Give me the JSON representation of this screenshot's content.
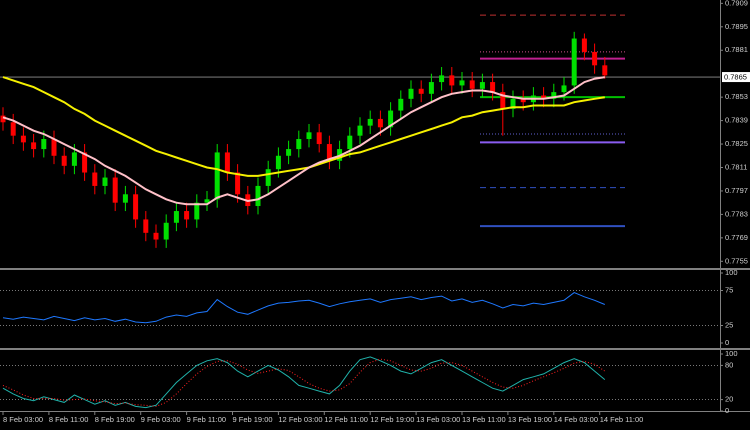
{
  "chart_data": [
    {
      "type": "candlestick",
      "open": [
        0.7842,
        0.7838,
        0.783,
        0.7826,
        0.7822,
        0.7828,
        0.7818,
        0.7812,
        0.782,
        0.7808,
        0.78,
        0.7805,
        0.779,
        0.7795,
        0.778,
        0.7772,
        0.7768,
        0.7778,
        0.7785,
        0.778,
        0.779,
        0.7792,
        0.782,
        0.7808,
        0.7795,
        0.7788,
        0.78,
        0.781,
        0.7818,
        0.7822,
        0.7828,
        0.7832,
        0.7825,
        0.7815,
        0.7822,
        0.783,
        0.7836,
        0.784,
        0.7835,
        0.7845,
        0.7852,
        0.7858,
        0.7855,
        0.7862,
        0.7866,
        0.786,
        0.7863,
        0.7858,
        0.7862,
        0.7856,
        0.7846,
        0.7852,
        0.785,
        0.7854,
        0.7852,
        0.7856,
        0.786,
        0.7888,
        0.788,
        0.7872
      ],
      "high": [
        0.7847,
        0.7843,
        0.7835,
        0.7831,
        0.7833,
        0.7833,
        0.7823,
        0.7825,
        0.7825,
        0.7813,
        0.781,
        0.781,
        0.78,
        0.78,
        0.7785,
        0.7777,
        0.7783,
        0.779,
        0.779,
        0.7795,
        0.7797,
        0.7825,
        0.7825,
        0.7813,
        0.78,
        0.7805,
        0.7815,
        0.7823,
        0.7827,
        0.7833,
        0.7837,
        0.7837,
        0.783,
        0.7827,
        0.7835,
        0.7841,
        0.7845,
        0.7845,
        0.785,
        0.7857,
        0.7863,
        0.7863,
        0.7867,
        0.7871,
        0.7871,
        0.7868,
        0.7868,
        0.7867,
        0.7867,
        0.7861,
        0.7857,
        0.7857,
        0.7859,
        0.7859,
        0.7861,
        0.7865,
        0.7892,
        0.7891,
        0.7885,
        0.7877
      ],
      "low": [
        0.7833,
        0.7825,
        0.7821,
        0.7817,
        0.7817,
        0.7813,
        0.7807,
        0.7807,
        0.7803,
        0.7795,
        0.7795,
        0.7785,
        0.7785,
        0.7775,
        0.7767,
        0.7763,
        0.7763,
        0.7773,
        0.7775,
        0.7775,
        0.7785,
        0.7787,
        0.7803,
        0.779,
        0.7783,
        0.7783,
        0.7795,
        0.7805,
        0.7813,
        0.7817,
        0.7823,
        0.782,
        0.781,
        0.781,
        0.7817,
        0.7825,
        0.7831,
        0.783,
        0.783,
        0.784,
        0.7847,
        0.785,
        0.785,
        0.7857,
        0.7855,
        0.7855,
        0.7853,
        0.7853,
        0.7851,
        0.783,
        0.7841,
        0.7845,
        0.7845,
        0.7847,
        0.7847,
        0.7851,
        0.7855,
        0.7875,
        0.7867,
        0.7864
      ],
      "close": [
        0.7838,
        0.783,
        0.7826,
        0.7822,
        0.7828,
        0.7818,
        0.7812,
        0.782,
        0.7808,
        0.78,
        0.7805,
        0.779,
        0.7795,
        0.778,
        0.7772,
        0.7768,
        0.7778,
        0.7785,
        0.778,
        0.779,
        0.7792,
        0.782,
        0.7808,
        0.7795,
        0.7788,
        0.78,
        0.781,
        0.7818,
        0.7822,
        0.7828,
        0.7832,
        0.7825,
        0.7815,
        0.7822,
        0.783,
        0.7836,
        0.784,
        0.7835,
        0.7845,
        0.7852,
        0.7858,
        0.7855,
        0.7862,
        0.7866,
        0.786,
        0.7863,
        0.7858,
        0.7862,
        0.7856,
        0.7846,
        0.7852,
        0.785,
        0.7854,
        0.7852,
        0.7856,
        0.786,
        0.7888,
        0.788,
        0.7872,
        0.7866
      ],
      "up_color": "#00e000",
      "down_color": "#ff0000",
      "series": [
        {
          "color": "#f5f000",
          "values": [
            0.7865,
            0.7863,
            0.7861,
            0.7859,
            0.7856,
            0.7853,
            0.785,
            0.7846,
            0.7843,
            0.7839,
            0.7836,
            0.7833,
            0.783,
            0.7827,
            0.7824,
            0.7821,
            0.7819,
            0.7817,
            0.7815,
            0.7813,
            0.7811,
            0.781,
            0.7808,
            0.7807,
            0.7806,
            0.7806,
            0.7807,
            0.7808,
            0.7809,
            0.781,
            0.7811,
            0.7813,
            0.7815,
            0.7817,
            0.7819,
            0.782,
            0.7822,
            0.7824,
            0.7826,
            0.7828,
            0.783,
            0.7832,
            0.7834,
            0.7836,
            0.7838,
            0.7841,
            0.7842,
            0.7844,
            0.7845,
            0.7846,
            0.7847,
            0.7847,
            0.7848,
            0.7848,
            0.7848,
            0.7848,
            0.785,
            0.7851,
            0.7852,
            0.7853
          ]
        },
        {
          "color": "#ffc0c8",
          "values": [
            0.7841,
            0.7839,
            0.7836,
            0.7833,
            0.7831,
            0.7828,
            0.7825,
            0.7822,
            0.7819,
            0.7816,
            0.7812,
            0.7809,
            0.7806,
            0.7802,
            0.7798,
            0.7795,
            0.7792,
            0.779,
            0.7789,
            0.7789,
            0.7789,
            0.7793,
            0.7795,
            0.7793,
            0.7791,
            0.7792,
            0.7795,
            0.7799,
            0.7803,
            0.7807,
            0.7811,
            0.7814,
            0.7816,
            0.7818,
            0.7821,
            0.7824,
            0.7828,
            0.7832,
            0.7836,
            0.784,
            0.7844,
            0.7847,
            0.785,
            0.7853,
            0.7855,
            0.7856,
            0.7857,
            0.7857,
            0.7856,
            0.7854,
            0.7853,
            0.7852,
            0.7852,
            0.7852,
            0.7853,
            0.7854,
            0.7858,
            0.7862,
            0.7864,
            0.7865
          ]
        }
      ],
      "levels": [
        {
          "value": 0.7902,
          "color": "#c03030",
          "style": "dashed"
        },
        {
          "value": 0.788,
          "color": "#d0508a",
          "style": "dotted"
        },
        {
          "value": 0.7876,
          "color": "#c0208f",
          "style": "solid"
        },
        {
          "value": 0.7853,
          "color": "#00c000",
          "style": "solid"
        },
        {
          "value": 0.7831,
          "color": "#6060d0",
          "style": "dotted"
        },
        {
          "value": 0.7826,
          "color": "#8a5cf0",
          "style": "solid"
        },
        {
          "value": 0.7799,
          "color": "#3050c0",
          "style": "dashed"
        },
        {
          "value": 0.7776,
          "color": "#3050c0",
          "style": "solid"
        }
      ],
      "last_price": 0.7865,
      "ylim": [
        0.7751,
        0.7911
      ],
      "yticks": [
        0.7909,
        0.7895,
        0.7881,
        0.7853,
        0.7839,
        0.7825,
        0.7811,
        0.7797,
        0.7783,
        0.7769,
        0.7755
      ]
    },
    {
      "type": "line",
      "series": [
        {
          "color": "#1e78ff",
          "style": "solid",
          "values": [
            36,
            34,
            37,
            35,
            33,
            38,
            35,
            32,
            36,
            33,
            35,
            31,
            34,
            30,
            29,
            31,
            37,
            40,
            38,
            43,
            45,
            62,
            52,
            44,
            41,
            47,
            53,
            57,
            58,
            60,
            61,
            57,
            52,
            56,
            59,
            61,
            63,
            58,
            62,
            64,
            66,
            62,
            65,
            67,
            60,
            63,
            58,
            61,
            56,
            50,
            55,
            53,
            57,
            55,
            58,
            61,
            72,
            66,
            61,
            55
          ]
        }
      ],
      "ylim": [
        0,
        100
      ],
      "yticks": [
        100,
        75,
        25,
        0
      ],
      "grid": true
    },
    {
      "type": "line",
      "series": [
        {
          "color": "#20b2aa",
          "style": "solid",
          "values": [
            40,
            30,
            22,
            18,
            25,
            20,
            15,
            28,
            20,
            12,
            18,
            10,
            15,
            8,
            6,
            10,
            30,
            50,
            65,
            80,
            88,
            92,
            85,
            70,
            60,
            70,
            80,
            72,
            60,
            45,
            40,
            35,
            30,
            45,
            70,
            90,
            95,
            88,
            80,
            70,
            65,
            75,
            85,
            90,
            80,
            70,
            60,
            50,
            40,
            35,
            45,
            55,
            60,
            65,
            75,
            85,
            92,
            85,
            70,
            55
          ]
        },
        {
          "color": "#ff2020",
          "style": "dotted",
          "values": [
            45,
            37,
            28,
            22,
            22,
            22,
            19,
            20,
            21,
            18,
            16,
            13,
            14,
            11,
            10,
            8,
            15,
            30,
            48,
            65,
            78,
            87,
            88,
            82,
            72,
            66,
            70,
            74,
            71,
            60,
            48,
            40,
            35,
            37,
            48,
            68,
            85,
            91,
            88,
            80,
            72,
            70,
            75,
            84,
            85,
            80,
            70,
            60,
            50,
            42,
            40,
            45,
            53,
            60,
            67,
            75,
            84,
            87,
            82,
            70
          ]
        }
      ],
      "ylim": [
        0,
        100
      ],
      "yticks": [
        100,
        80,
        20,
        0
      ],
      "grid": true,
      "xticks": [
        {
          "value": 0,
          "label": "8 Feb 03:00"
        },
        {
          "value": 4.5,
          "label": "8 Feb 11:00"
        },
        {
          "value": 9,
          "label": "8 Feb 19:00"
        },
        {
          "value": 13.5,
          "label": "9 Feb 03:00"
        },
        {
          "value": 18,
          "label": "9 Feb 11:00"
        },
        {
          "value": 22.5,
          "label": "9 Feb 19:00"
        },
        {
          "value": 27,
          "label": "12 Feb 03:00"
        },
        {
          "value": 31.5,
          "label": "12 Feb 11:00"
        },
        {
          "value": 36,
          "label": "12 Feb 19:00"
        },
        {
          "value": 40.5,
          "label": "13 Feb 03:00"
        },
        {
          "value": 45,
          "label": "13 Feb 11:00"
        },
        {
          "value": 49.5,
          "label": "13 Feb 19:00"
        },
        {
          "value": 54,
          "label": "14 Feb 03:00"
        },
        {
          "value": 58.5,
          "label": "14 Feb 11:00"
        }
      ]
    }
  ]
}
